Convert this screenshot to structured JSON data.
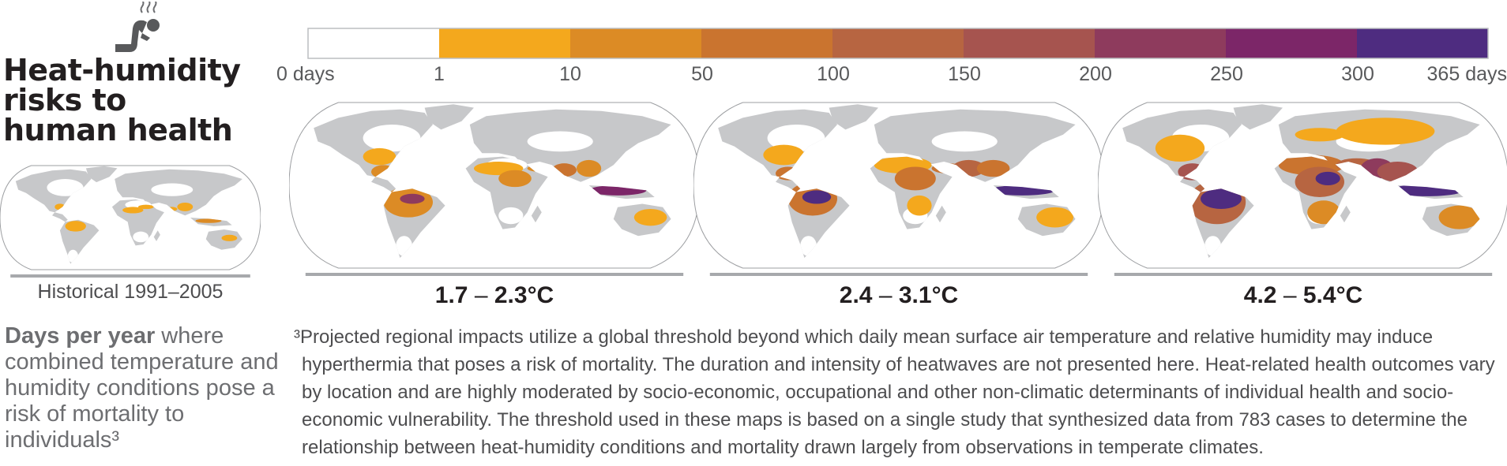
{
  "figure": {
    "title_lines": [
      "Heat-humidity",
      "risks to",
      "human health"
    ],
    "icon": "person-suffering-heat-icon",
    "colors": {
      "ocean": "#ffffff",
      "land_no_data": "#c7c8ca",
      "legend_border": "#bcbec0"
    }
  },
  "legend": {
    "ticks": [
      "0 days",
      "1",
      "10",
      "50",
      "100",
      "150",
      "200",
      "250",
      "300",
      "365 days"
    ],
    "colors": [
      "#ffffff",
      "#f4a81d",
      "#dc8b25",
      "#ca742f",
      "#b76541",
      "#a6544f",
      "#8e3b5d",
      "#7c2668",
      "#4e2c80"
    ]
  },
  "maps": [
    {
      "label": "Historical 1991–2005",
      "intensity": 0
    },
    {
      "label_lo": "1.7",
      "label_dash": "–",
      "label_hi": "2.3°C",
      "intensity": 1
    },
    {
      "label_lo": "2.4",
      "label_dash": "–",
      "label_hi": "3.1°C",
      "intensity": 2
    },
    {
      "label_lo": "4.2",
      "label_dash": "–",
      "label_hi": "5.4°C",
      "intensity": 3
    }
  ],
  "description": {
    "bold": "Days per year",
    "rest": " where combined temperature and humidity conditions pose a risk of mortality to individuals³"
  },
  "footnote": "³Projected regional impacts utilize a global threshold beyond which daily mean surface air temperature and relative humidity may induce hyperthermia that poses a risk of mortality. The duration and intensity of heatwaves are not presented here. Heat-related health outcomes vary by location and are highly moderated by socio-economic, occupational and other non-climatic determinants of individual health and socio-economic vulnerability. The threshold used in these maps is based on a single study that synthesized data from 783 cases to determine the relationship between heat-humidity conditions and mortality drawn largely from observations in temperate climates."
}
